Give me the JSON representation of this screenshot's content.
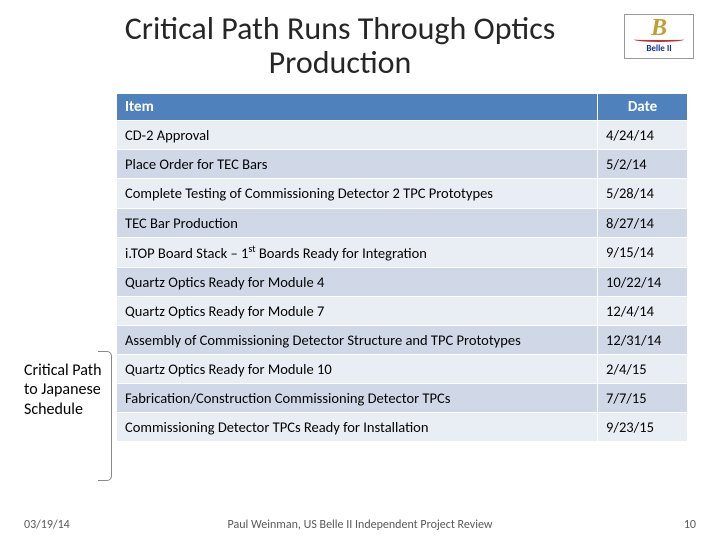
{
  "title": "Critical Path Runs Through Optics Production",
  "logo": {
    "letter": "B",
    "subtitle": "Belle II"
  },
  "sideLabel": "Critical Path to Japanese Schedule",
  "table": {
    "header": {
      "item": "Item",
      "date": "Date"
    },
    "rows": [
      {
        "item": "CD-2 Approval",
        "date": "4/24/14"
      },
      {
        "item": "Place Order for TEC Bars",
        "date": "5/2/14"
      },
      {
        "item": "Complete Testing of Commissioning Detector 2 TPC Prototypes",
        "date": "5/28/14"
      },
      {
        "item": "TEC Bar Production",
        "date": "8/27/14"
      },
      {
        "item": "i.TOP Board Stack – 1st Boards Ready for Integration",
        "date": "9/15/14",
        "sup": true
      },
      {
        "item": "Quartz Optics Ready for Module 4",
        "date": "10/22/14"
      },
      {
        "item": "Quartz Optics Ready for Module 7",
        "date": "12/4/14"
      },
      {
        "item": "Assembly of Commissioning Detector Structure and TPC Prototypes",
        "date": "12/31/14"
      },
      {
        "item": "Quartz Optics Ready for Module 10",
        "date": "2/4/15"
      },
      {
        "item": "Fabrication/Construction Commissioning Detector TPCs",
        "date": "7/7/15"
      },
      {
        "item": "Commissioning Detector TPCs Ready for Installation",
        "date": "9/23/15"
      }
    ]
  },
  "footer": {
    "date": "03/19/14",
    "center": "Paul Weinman, US Belle II Independent Project Review",
    "page": "10"
  },
  "colors": {
    "headerBg": "#4f81bd",
    "rowBg": "#e9edf4",
    "rowAltBg": "#d0d8e8"
  }
}
